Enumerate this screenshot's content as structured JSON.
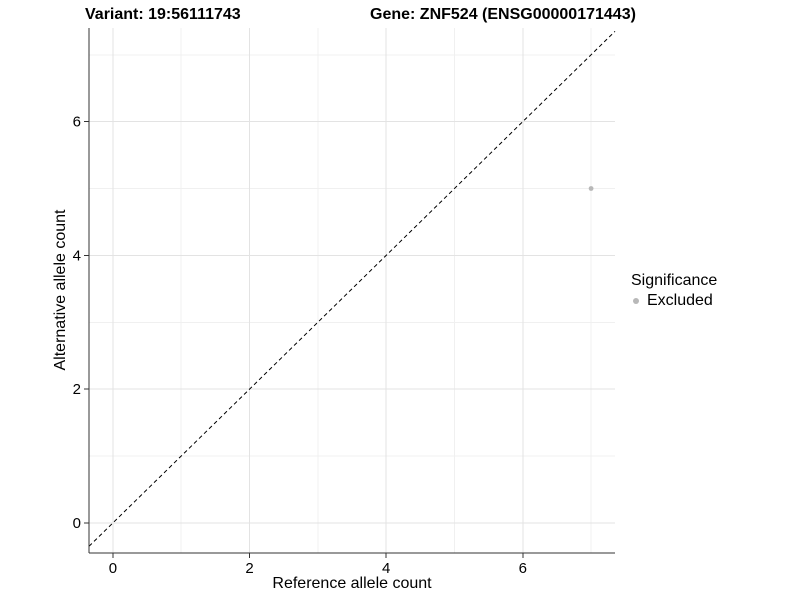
{
  "header": {
    "variant_title": "Variant: 19:56111743",
    "gene_title": "Gene: ZNF524 (ENSG00000171443)"
  },
  "chart_data": {
    "type": "scatter",
    "xlabel": "Reference allele count",
    "ylabel": "Alternative allele count",
    "xlim": [
      -0.35,
      7.35
    ],
    "ylim": [
      -0.45,
      7.4
    ],
    "xticks": [
      0,
      2,
      4,
      6
    ],
    "yticks": [
      0,
      2,
      4,
      6
    ],
    "xticks_minor": [
      1,
      3,
      5,
      7
    ],
    "yticks_minor": [
      1,
      3,
      5,
      7
    ],
    "grid": "major and minor gridlines on white background",
    "reference_line": {
      "description": "identity line y = x",
      "from": [
        -0.35,
        -0.35
      ],
      "to": [
        7.35,
        7.35
      ],
      "style": "dashed",
      "color": "#000000"
    },
    "series": [
      {
        "name": "Excluded",
        "color": "#b8b8b8",
        "points": [
          [
            7,
            5
          ]
        ]
      }
    ],
    "legend": {
      "position": "right",
      "title": "Significance",
      "items": [
        {
          "label": "Excluded",
          "color": "#b8b8b8",
          "marker": "circle"
        }
      ]
    }
  },
  "colors": {
    "background": "#ffffff",
    "grid_major": "#e3e3e3",
    "grid_minor": "#f0f0f0",
    "axis_line": "#333333",
    "text": "#000000",
    "point": "#b8b8b8"
  }
}
